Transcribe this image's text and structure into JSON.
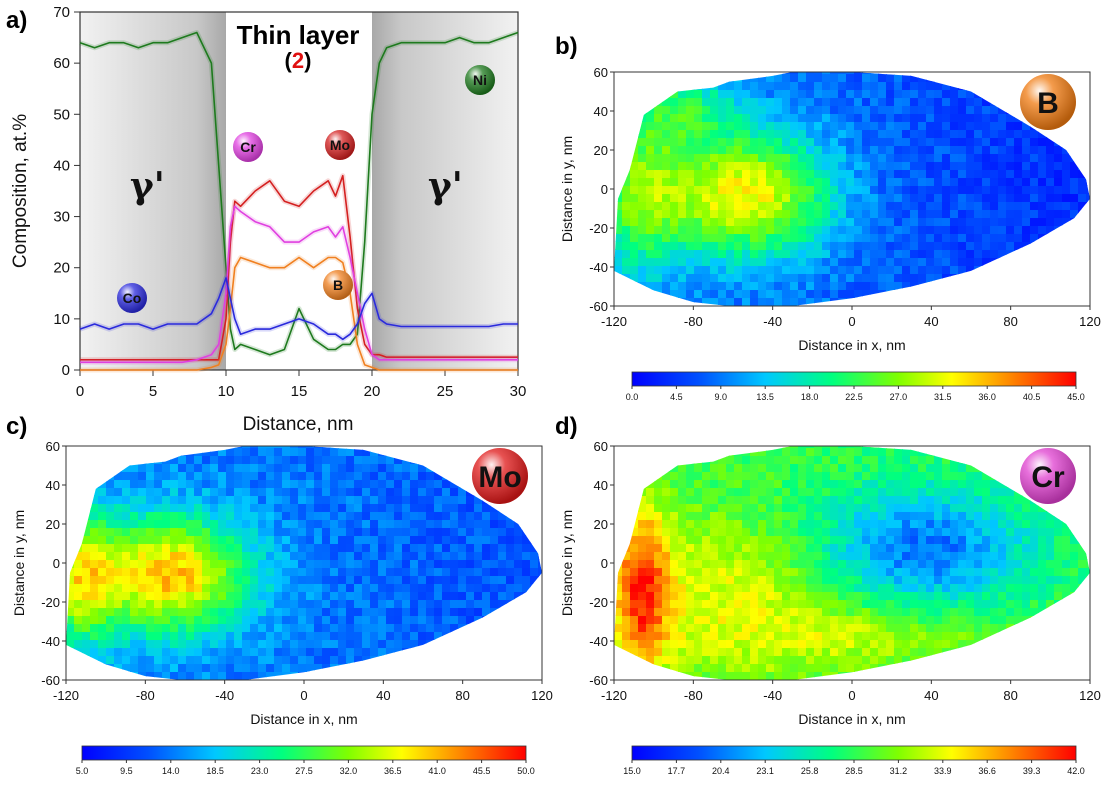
{
  "chart_data": [
    {
      "panel": "a)",
      "type": "line",
      "title": "Thin layer",
      "title_marker_open": "(",
      "title_marker": "2",
      "title_marker_close": ")",
      "xlabel": "Distance, nm",
      "ylabel": "Composition, at.%",
      "xlim": [
        0,
        30
      ],
      "ylim": [
        0,
        70
      ],
      "xticks": [
        "0",
        "5",
        "10",
        "15",
        "20",
        "25",
        "30"
      ],
      "yticks": [
        "0",
        "10",
        "20",
        "30",
        "40",
        "50",
        "60",
        "70"
      ],
      "regions": [
        {
          "label": "γ'",
          "x": [
            0,
            10
          ],
          "shading": "gray"
        },
        {
          "label": "γ'",
          "x": [
            20,
            30
          ],
          "shading": "gray"
        }
      ],
      "x": [
        0,
        1,
        2,
        3,
        4,
        5,
        6,
        7,
        8,
        9,
        9.5,
        10,
        10.3,
        10.6,
        11,
        12,
        13,
        14,
        15,
        16,
        17,
        17.5,
        18,
        18.5,
        19,
        19.5,
        20,
        20.5,
        21,
        22,
        23,
        24,
        25,
        26,
        27,
        28,
        29,
        30
      ],
      "series": [
        {
          "name": "Ni",
          "color": "#1e7a1e",
          "values": [
            64,
            63,
            64,
            64,
            63,
            64,
            64,
            65,
            66,
            60,
            40,
            20,
            8,
            4,
            5,
            4,
            3,
            4,
            12,
            6,
            4,
            4,
            5,
            5,
            7,
            25,
            50,
            60,
            63,
            64,
            64,
            64,
            64,
            65,
            64,
            64,
            65,
            66
          ]
        },
        {
          "name": "Mo",
          "color": "#d42020",
          "values": [
            2,
            2,
            2,
            2,
            2,
            2,
            2,
            2,
            2,
            2,
            2,
            10,
            25,
            33,
            32,
            35,
            37,
            33,
            32,
            35,
            37,
            34,
            38,
            26,
            12,
            5,
            3,
            3,
            2.5,
            2.5,
            2.5,
            2.5,
            2.5,
            2.5,
            2.5,
            2.5,
            2.5,
            2.5
          ]
        },
        {
          "name": "Cr",
          "color": "#e040e0",
          "values": [
            1.5,
            1.5,
            1.5,
            1.5,
            1.5,
            1.5,
            1.5,
            1.5,
            2,
            3,
            5,
            15,
            28,
            32,
            31,
            29,
            28,
            25,
            25,
            27,
            28,
            26,
            28,
            22,
            15,
            8,
            3,
            2,
            2,
            2,
            2,
            2,
            2,
            2,
            2,
            2,
            2,
            2
          ]
        },
        {
          "name": "B",
          "color": "#f08020",
          "values": [
            0,
            0,
            0,
            0,
            0,
            0,
            0,
            0,
            0,
            0.5,
            1,
            5,
            12,
            20,
            22,
            21,
            20,
            20,
            22,
            20,
            22,
            22,
            21,
            15,
            5,
            1,
            0.5,
            0,
            0,
            0,
            0,
            0,
            0,
            0,
            0,
            0,
            0,
            0
          ]
        },
        {
          "name": "Co",
          "color": "#2a2adc",
          "values": [
            8,
            9,
            8,
            9,
            9,
            8,
            9,
            9,
            9,
            11,
            14,
            18,
            14,
            10,
            7,
            8,
            8,
            9,
            10,
            9,
            7,
            7,
            6,
            7,
            9,
            13,
            15,
            10,
            9,
            8.5,
            8.5,
            8.5,
            8.5,
            8.5,
            8.5,
            8.5,
            9,
            9
          ]
        }
      ]
    },
    {
      "panel": "b)",
      "type": "heatmap",
      "element": "B",
      "element_color": "#f07a10",
      "xlabel": "Distance in x, nm",
      "ylabel": "Distance in y, nm",
      "xticks": [
        "-120",
        "-80",
        "-40",
        "0",
        "40",
        "80",
        "120"
      ],
      "yticks": [
        "-60",
        "-40",
        "-20",
        "0",
        "20",
        "40",
        "60"
      ],
      "colorbar_ticks": [
        "0.0",
        "4.5",
        "9.0",
        "13.5",
        "18.0",
        "22.5",
        "27.0",
        "31.5",
        "36.0",
        "40.5",
        "45.0"
      ],
      "hotspot": [
        -60,
        -10
      ]
    },
    {
      "panel": "c)",
      "type": "heatmap",
      "element": "Mo",
      "element_color": "#e01818",
      "xlabel": "Distance in x, nm",
      "ylabel": "Distance in y, nm",
      "xticks": [
        "-120",
        "-80",
        "-40",
        "0",
        "40",
        "80",
        "120"
      ],
      "yticks": [
        "-60",
        "-40",
        "-20",
        "0",
        "20",
        "40",
        "60"
      ],
      "colorbar_ticks": [
        "5.0",
        "9.5",
        "14.0",
        "18.5",
        "23.0",
        "27.5",
        "32.0",
        "36.5",
        "41.0",
        "45.5",
        "50.0"
      ],
      "hotspot": [
        -70,
        -10
      ]
    },
    {
      "panel": "d)",
      "type": "heatmap",
      "element": "Cr",
      "element_color": "#e040d0",
      "xlabel": "Distance in x, nm",
      "ylabel": "Distance in y, nm",
      "xticks": [
        "-120",
        "-80",
        "-40",
        "0",
        "40",
        "80",
        "120"
      ],
      "yticks": [
        "-60",
        "-40",
        "-20",
        "0",
        "20",
        "40",
        "60"
      ],
      "colorbar_ticks": [
        "15.0",
        "17.7",
        "20.4",
        "23.1",
        "25.8",
        "28.5",
        "31.2",
        "33.9",
        "36.6",
        "39.3",
        "42.0"
      ],
      "hotspot": [
        -100,
        -15
      ]
    }
  ]
}
